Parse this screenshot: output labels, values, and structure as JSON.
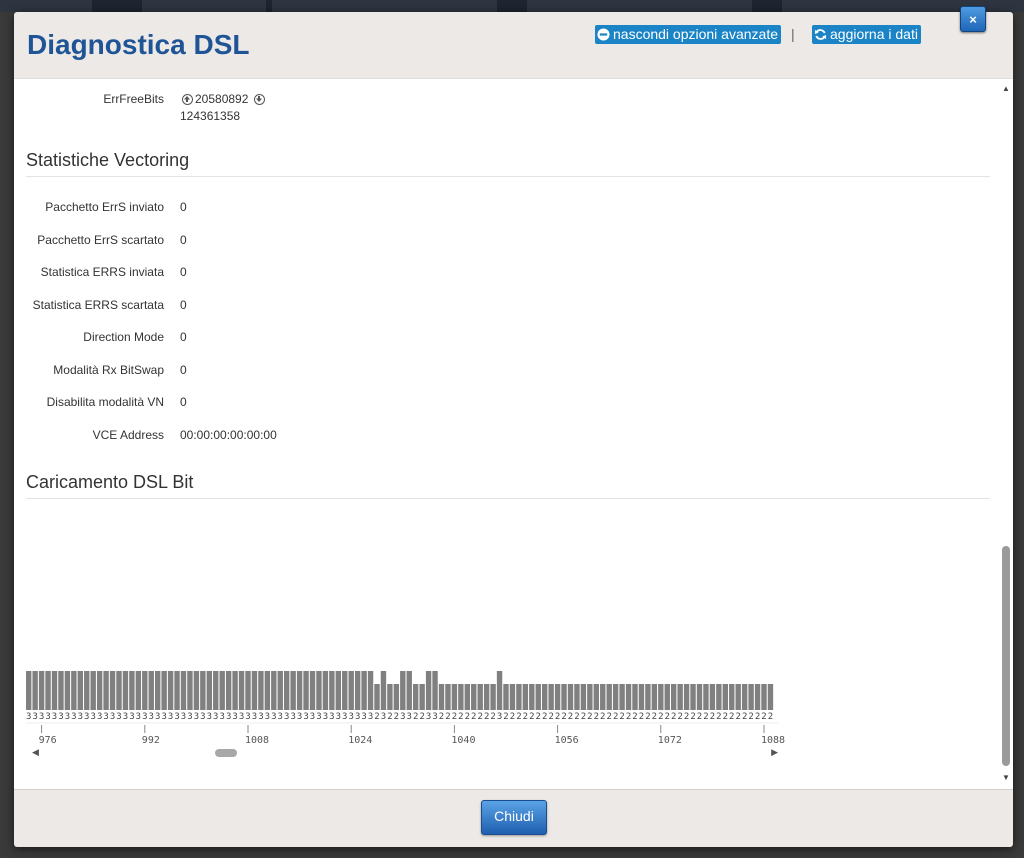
{
  "modal": {
    "title": "Diagnostica DSL",
    "close_label": "×"
  },
  "header": {
    "advanced_label": "nascondi opzioni avanzate",
    "separator": "|",
    "refresh_label": "aggiorna i dati",
    "link_color": "#1b84c7"
  },
  "errfree": {
    "label": "ErrFreeBits",
    "up_value": "20580892",
    "down_value": "124361358",
    "up_icon": "arrow-up-circle-icon",
    "down_icon": "arrow-down-circle-icon"
  },
  "vectoring": {
    "title": "Statistiche Vectoring",
    "rows": [
      {
        "label": "Pacchetto ErrS inviato",
        "value": "0"
      },
      {
        "label": "Pacchetto ErrS scartato",
        "value": "0"
      },
      {
        "label": "Statistica ERRS inviata",
        "value": "0"
      },
      {
        "label": "Statistica ERRS scartata",
        "value": "0"
      },
      {
        "label": "Direction Mode",
        "value": "0"
      },
      {
        "label": "Modalità Rx BitSwap",
        "value": "0"
      },
      {
        "label": "Disabilita modalità VN",
        "value": "0"
      },
      {
        "label": "VCE Address",
        "value": "00:00:00:00:00:00"
      }
    ]
  },
  "bitload": {
    "title": "Caricamento DSL Bit"
  },
  "chart_data": {
    "type": "bar",
    "x_start": 974,
    "values": [
      3,
      3,
      3,
      3,
      3,
      3,
      3,
      3,
      3,
      3,
      3,
      3,
      3,
      3,
      3,
      3,
      3,
      3,
      3,
      3,
      3,
      3,
      3,
      3,
      3,
      3,
      3,
      3,
      3,
      3,
      3,
      3,
      3,
      3,
      3,
      3,
      3,
      3,
      3,
      3,
      3,
      3,
      3,
      3,
      3,
      3,
      3,
      3,
      3,
      3,
      3,
      3,
      3,
      3,
      2,
      3,
      2,
      2,
      3,
      3,
      2,
      2,
      3,
      3,
      2,
      2,
      2,
      2,
      2,
      2,
      2,
      2,
      2,
      3,
      2,
      2,
      2,
      2,
      2,
      2,
      2,
      2,
      2,
      2,
      2,
      2,
      2,
      2,
      2,
      2,
      2,
      2,
      2,
      2,
      2,
      2,
      2,
      2,
      2,
      2,
      2,
      2,
      2,
      2,
      2,
      2,
      2,
      2,
      2,
      2,
      2,
      2,
      2,
      2,
      2,
      2,
      2,
      2
    ],
    "x_ticks": [
      976,
      992,
      1008,
      1024,
      1040,
      1056,
      1072,
      1088
    ],
    "ylim": [
      0,
      15
    ],
    "bar_color": "#808080"
  },
  "footer": {
    "close_label": "Chiudi"
  },
  "scroll": {
    "up": "▲",
    "down": "▼",
    "left": "◀",
    "right": "▶"
  }
}
